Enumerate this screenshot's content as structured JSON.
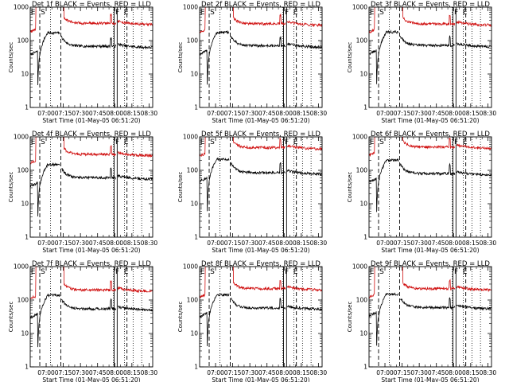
{
  "chart_data": [
    {
      "type": "line",
      "title": "Det 1f BLACK = Events, RED = LLD",
      "xlabel": "Start Time (01-May-05 06:51:20)",
      "ylabel": "Counts/sec",
      "series": [
        {
          "color": "#000000",
          "level": 68
        },
        {
          "color": "#d01010",
          "level": 330
        }
      ]
    },
    {
      "type": "line",
      "title": "Det 2f BLACK = Events, RED = LLD",
      "xlabel": "Start Time (01-May-05 06:51:20)",
      "ylabel": "Counts/sec",
      "series": [
        {
          "color": "#000000",
          "level": 70
        },
        {
          "color": "#d01010",
          "level": 320
        }
      ]
    },
    {
      "type": "line",
      "title": "Det 3f BLACK = Events, RED = LLD",
      "xlabel": "Start Time (01-May-05 06:51:20)",
      "ylabel": "Counts/sec",
      "series": [
        {
          "color": "#000000",
          "level": 72
        },
        {
          "color": "#d01010",
          "level": 320
        }
      ]
    },
    {
      "type": "line",
      "title": "Det 4f BLACK = Events, RED = LLD",
      "xlabel": "Start Time (01-May-05 06:51:20)",
      "ylabel": "Counts/sec",
      "series": [
        {
          "color": "#000000",
          "level": 60
        },
        {
          "color": "#d01010",
          "level": 300
        }
      ]
    },
    {
      "type": "line",
      "title": "Det 5f BLACK = Events, RED = LLD",
      "xlabel": "Start Time (01-May-05 06:51:20)",
      "ylabel": "Counts/sec",
      "series": [
        {
          "color": "#000000",
          "level": 85
        },
        {
          "color": "#d01010",
          "level": 480
        }
      ]
    },
    {
      "type": "line",
      "title": "Det 6f BLACK = Events, RED = LLD",
      "xlabel": "Start Time (01-May-05 06:51:20)",
      "ylabel": "Counts/sec",
      "series": [
        {
          "color": "#000000",
          "level": 80
        },
        {
          "color": "#d01010",
          "level": 500
        }
      ]
    },
    {
      "type": "line",
      "title": "Det 7f BLACK = Events, RED = LLD",
      "xlabel": "Start Time (01-May-05 06:51:20)",
      "ylabel": "Counts/sec",
      "series": [
        {
          "color": "#000000",
          "level": 55
        },
        {
          "color": "#d01010",
          "level": 200
        }
      ]
    },
    {
      "type": "line",
      "title": "Det 8f BLACK = Events, RED = LLD",
      "xlabel": "Start Time (01-May-05 06:51:20)",
      "ylabel": "Counts/sec",
      "series": [
        {
          "color": "#000000",
          "level": 58
        },
        {
          "color": "#d01010",
          "level": 220
        }
      ]
    },
    {
      "type": "line",
      "title": "Det 9f BLACK = Events, RED = LLD",
      "xlabel": "Start Time (01-May-05 06:51:20)",
      "ylabel": "Counts/sec",
      "series": [
        {
          "color": "#000000",
          "level": 60
        },
        {
          "color": "#d01010",
          "level": 220
        }
      ]
    }
  ],
  "shared": {
    "x_ticks": [
      "07:00",
      "07:15",
      "07:30",
      "07:45",
      "08:00",
      "08:15",
      "08:30"
    ],
    "y_ticks": [
      "1",
      "10",
      "100",
      "1000"
    ],
    "y_scale": "log",
    "ylim": [
      1,
      1000
    ],
    "flags": [
      "E",
      "S",
      "F",
      "E"
    ]
  }
}
